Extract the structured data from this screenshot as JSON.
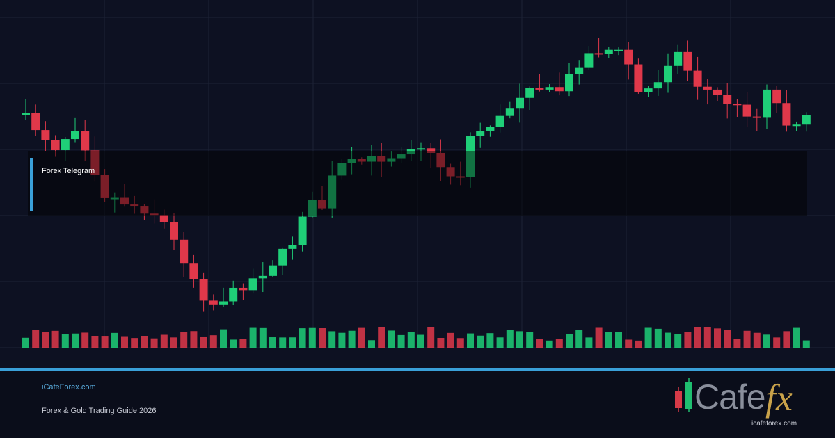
{
  "header": {
    "label": "Forex Telegram"
  },
  "footer": {
    "site": "iCafeForex.com",
    "title": "Forex & Gold Trading Guide 2026"
  },
  "logo": {
    "word": "Cafe",
    "accent": "fx",
    "url": "icafeforex.com"
  }
}
